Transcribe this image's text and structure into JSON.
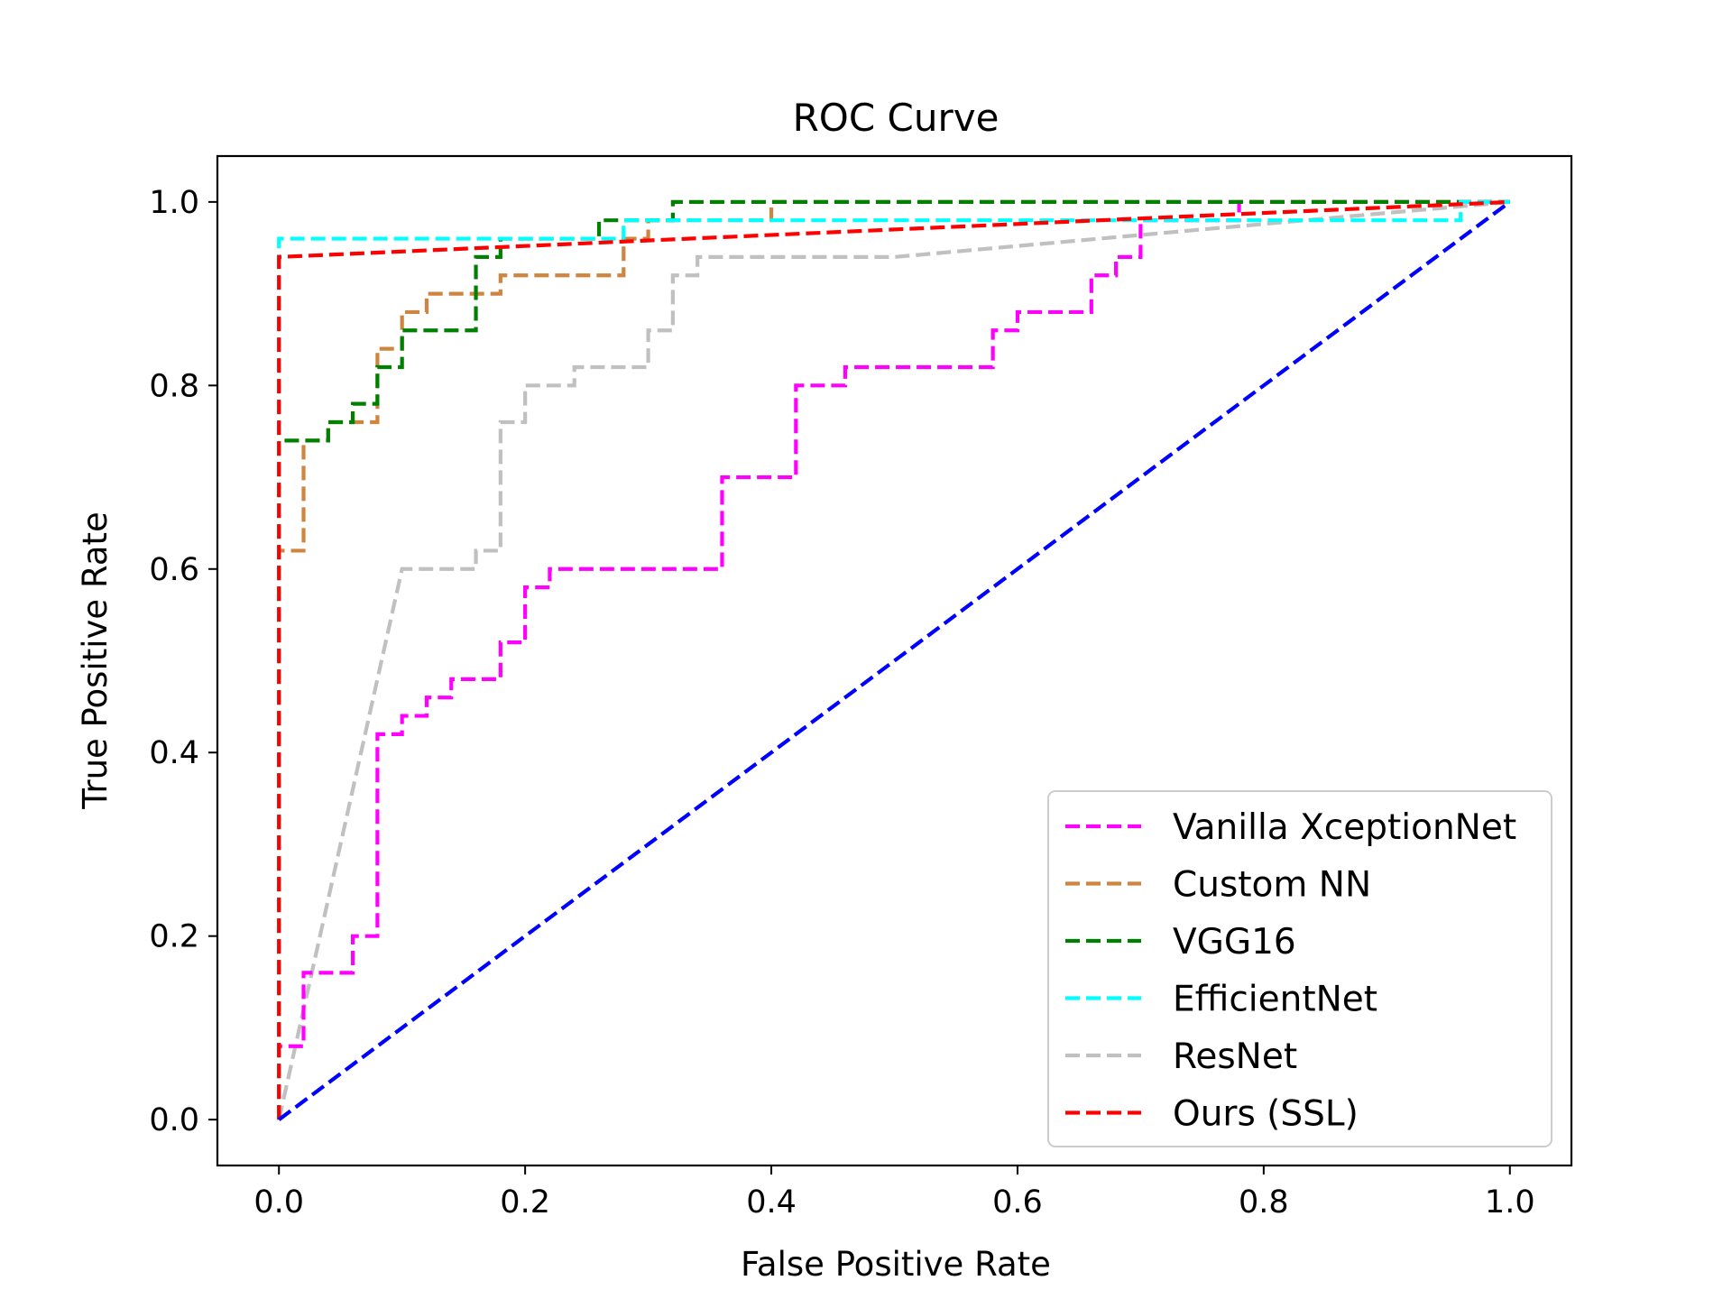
{
  "chart_data": {
    "type": "line",
    "title": "ROC Curve",
    "xlabel": "False Positive Rate",
    "ylabel": "True Positive Rate",
    "xlim": [
      -0.05,
      1.05
    ],
    "ylim": [
      -0.05,
      1.05
    ],
    "xticks": [
      0.0,
      0.2,
      0.4,
      0.6,
      0.8,
      1.0
    ],
    "yticks": [
      0.0,
      0.2,
      0.4,
      0.6,
      0.8,
      1.0
    ],
    "xtick_labels": [
      "0.0",
      "0.2",
      "0.4",
      "0.6",
      "0.8",
      "1.0"
    ],
    "ytick_labels": [
      "0.0",
      "0.2",
      "0.4",
      "0.6",
      "0.8",
      "1.0"
    ],
    "grid": false,
    "legend_position": "lower-right",
    "series": [
      {
        "name": "Vanilla XceptionNet",
        "color": "#ff00ff",
        "x": [
          0,
          0,
          0.02,
          0.02,
          0.06,
          0.06,
          0.08,
          0.08,
          0.1,
          0.1,
          0.12,
          0.12,
          0.14,
          0.14,
          0.18,
          0.18,
          0.2,
          0.2,
          0.22,
          0.22,
          0.36,
          0.36,
          0.42,
          0.42,
          0.46,
          0.46,
          0.58,
          0.58,
          0.6,
          0.6,
          0.66,
          0.66,
          0.68,
          0.68,
          0.7,
          0.7,
          0.78,
          0.78,
          1.0
        ],
        "y": [
          0,
          0.08,
          0.08,
          0.16,
          0.16,
          0.2,
          0.2,
          0.42,
          0.42,
          0.44,
          0.44,
          0.46,
          0.46,
          0.48,
          0.48,
          0.52,
          0.52,
          0.58,
          0.58,
          0.6,
          0.6,
          0.7,
          0.7,
          0.8,
          0.8,
          0.82,
          0.82,
          0.86,
          0.86,
          0.88,
          0.88,
          0.92,
          0.92,
          0.94,
          0.94,
          0.98,
          0.98,
          1.0,
          1.0
        ]
      },
      {
        "name": "Custom NN",
        "color": "#cd853f",
        "x": [
          0,
          0,
          0.02,
          0.02,
          0.04,
          0.04,
          0.08,
          0.08,
          0.1,
          0.1,
          0.12,
          0.12,
          0.18,
          0.18,
          0.28,
          0.28,
          0.3,
          0.3,
          0.4,
          0.4,
          1.0
        ],
        "y": [
          0,
          0.62,
          0.62,
          0.74,
          0.74,
          0.76,
          0.76,
          0.84,
          0.84,
          0.88,
          0.88,
          0.9,
          0.9,
          0.92,
          0.92,
          0.96,
          0.96,
          0.98,
          0.98,
          1.0,
          1.0
        ]
      },
      {
        "name": "VGG16",
        "color": "#008000",
        "x": [
          0,
          0,
          0.04,
          0.04,
          0.06,
          0.06,
          0.08,
          0.08,
          0.1,
          0.1,
          0.16,
          0.16,
          0.18,
          0.18,
          0.26,
          0.26,
          0.32,
          0.32,
          1.0
        ],
        "y": [
          0,
          0.74,
          0.74,
          0.76,
          0.76,
          0.78,
          0.78,
          0.82,
          0.82,
          0.86,
          0.86,
          0.94,
          0.94,
          0.96,
          0.96,
          0.98,
          0.98,
          1.0,
          1.0
        ]
      },
      {
        "name": "EfficientNet",
        "color": "#00ffff",
        "x": [
          0,
          0,
          0.28,
          0.28,
          0.96,
          0.96,
          1.0
        ],
        "y": [
          0,
          0.96,
          0.96,
          0.98,
          0.98,
          1.0,
          1.0
        ]
      },
      {
        "name": "ResNet",
        "color": "#c0c0c0",
        "x": [
          0,
          0.1,
          0.16,
          0.16,
          0.18,
          0.18,
          0.2,
          0.2,
          0.24,
          0.24,
          0.3,
          0.3,
          0.32,
          0.32,
          0.34,
          0.34,
          0.5,
          1.0
        ],
        "y": [
          0,
          0.6,
          0.6,
          0.62,
          0.62,
          0.76,
          0.76,
          0.8,
          0.8,
          0.82,
          0.82,
          0.86,
          0.86,
          0.92,
          0.92,
          0.94,
          0.94,
          1.0
        ]
      },
      {
        "name": "Ours (SSL)",
        "color": "#ff0000",
        "x": [
          0,
          0,
          1.0
        ],
        "y": [
          0,
          0.94,
          1.0
        ]
      },
      {
        "name": "",
        "color": "#0000ff",
        "x": [
          0,
          1.0
        ],
        "y": [
          0,
          1.0
        ]
      }
    ]
  }
}
